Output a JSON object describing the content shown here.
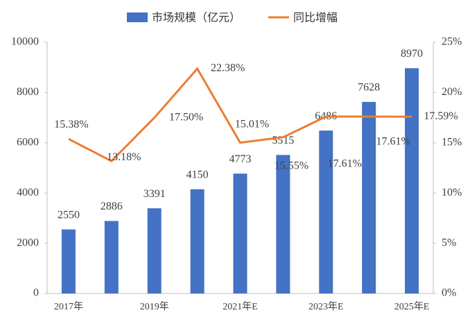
{
  "chart_data": {
    "type": "combo",
    "categories": [
      "2017年",
      null,
      "2019年",
      null,
      "2021年E",
      null,
      "2023年E",
      null,
      "2025年E"
    ],
    "series": [
      {
        "name": "市场规模（亿元）",
        "type": "bar",
        "color": "#4472c4",
        "values": [
          2550,
          2886,
          3391,
          4150,
          4773,
          5515,
          6486,
          7628,
          8970
        ]
      },
      {
        "name": "同比增幅",
        "type": "line",
        "axis": "y2",
        "color": "#ed7d31",
        "values": [
          15.38,
          13.18,
          17.5,
          22.38,
          15.01,
          15.55,
          17.61,
          17.61,
          17.59
        ],
        "value_labels": [
          "15.38%",
          "13.18%",
          "17.50%",
          "22.38%",
          "15.01%",
          "15.55%",
          "17.61%",
          "17.61%",
          "17.59%"
        ]
      }
    ],
    "ylim": [
      0,
      10000
    ],
    "yticks": [
      0,
      2000,
      4000,
      6000,
      8000,
      10000
    ],
    "y2lim": [
      0,
      25
    ],
    "y2ticks": [
      {
        "value": 0,
        "label": "0%"
      },
      {
        "value": 5,
        "label": "5%"
      },
      {
        "value": 10,
        "label": "10%"
      },
      {
        "value": 15,
        "label": "15%"
      },
      {
        "value": 20,
        "label": "20%"
      },
      {
        "value": 25,
        "label": "25%"
      }
    ],
    "legend": "top",
    "grid": false
  }
}
